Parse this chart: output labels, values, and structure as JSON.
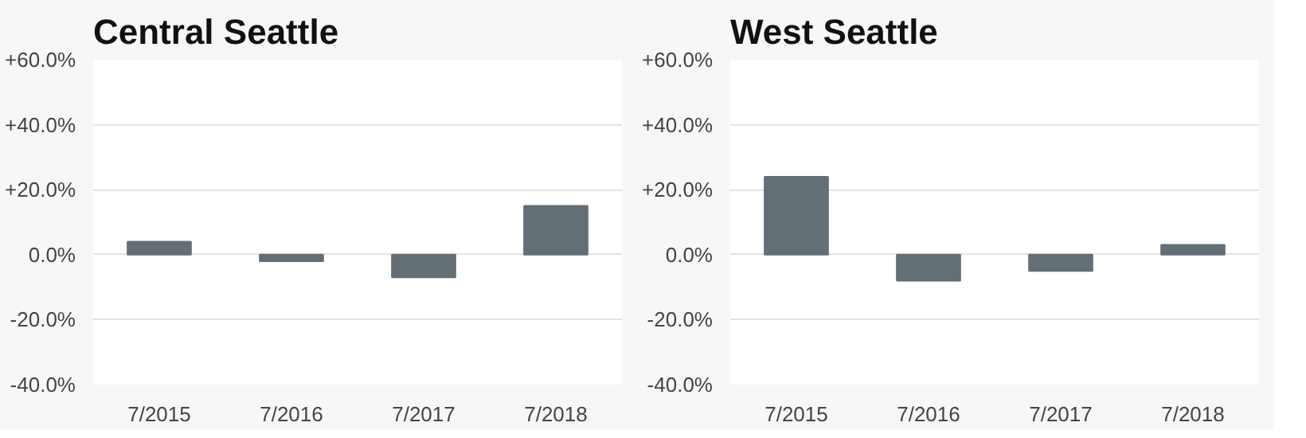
{
  "chart_data": [
    {
      "type": "bar",
      "title": "Central Seattle",
      "categories": [
        "7/2015",
        "7/2016",
        "7/2017",
        "7/2018"
      ],
      "values": [
        4,
        -2,
        -7,
        15
      ],
      "color": "#636e75",
      "ylim": [
        -40,
        60
      ],
      "yticks": [
        {
          "value": -40,
          "label": "-40.0%"
        },
        {
          "value": -20,
          "label": "-20.0%"
        },
        {
          "value": 0,
          "label": "0.0%"
        },
        {
          "value": 20,
          "label": "+20.0%"
        },
        {
          "value": 40,
          "label": "+40.0%"
        },
        {
          "value": 60,
          "label": "+60.0%"
        }
      ],
      "grid": "y"
    },
    {
      "type": "bar",
      "title": "West Seattle",
      "categories": [
        "7/2015",
        "7/2016",
        "7/2017",
        "7/2018"
      ],
      "values": [
        24,
        -8,
        -5,
        3
      ],
      "color": "#636e75",
      "ylim": [
        -40,
        60
      ],
      "yticks": [
        {
          "value": -40,
          "label": "-40.0%"
        },
        {
          "value": -20,
          "label": "-20.0%"
        },
        {
          "value": 0,
          "label": "0.0%"
        },
        {
          "value": 20,
          "label": "+20.0%"
        },
        {
          "value": 40,
          "label": "+40.0%"
        },
        {
          "value": 60,
          "label": "+60.0%"
        }
      ],
      "grid": "y"
    }
  ]
}
